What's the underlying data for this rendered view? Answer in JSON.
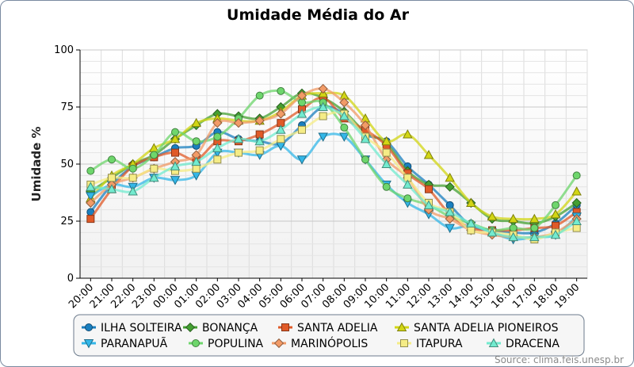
{
  "chart_data": {
    "type": "line",
    "title": "Umidade Média do Ar",
    "ylabel": "Umidade %",
    "xlabel": "",
    "ylim": [
      0,
      100
    ],
    "yticks": [
      0,
      25,
      50,
      75,
      100
    ],
    "grid": true,
    "legend_position": "bottom",
    "categories": [
      "20:00",
      "21:00",
      "22:00",
      "23:00",
      "00:00",
      "01:00",
      "02:00",
      "03:00",
      "04:00",
      "05:00",
      "06:00",
      "07:00",
      "08:00",
      "09:00",
      "10:00",
      "11:00",
      "12:00",
      "13:00",
      "14:00",
      "15:00",
      "16:00",
      "17:00",
      "18:00",
      "19:00"
    ],
    "source": "Source: clima.feis.unesp.br",
    "series": [
      {
        "name": "ILHA SOLTEIRA",
        "color": "#1a7fbf",
        "marker": "circle",
        "values": [
          29,
          41,
          49,
          53,
          57,
          58,
          64,
          61,
          60,
          59,
          67,
          75,
          72,
          63,
          60,
          49,
          41,
          32,
          23,
          21,
          20,
          20,
          24,
          32
        ]
      },
      {
        "name": "BONANÇA",
        "color": "#44a032",
        "marker": "diamond",
        "values": [
          38,
          44,
          50,
          54,
          61,
          67,
          72,
          71,
          70,
          75,
          81,
          79,
          73,
          64,
          59,
          47,
          41,
          40,
          33,
          26,
          25,
          24,
          27,
          33
        ]
      },
      {
        "name": "SANTA ADELIA",
        "color": "#e05a28",
        "marker": "square",
        "values": [
          26,
          39,
          49,
          53,
          55,
          52,
          60,
          60,
          63,
          68,
          74,
          79,
          70,
          65,
          58,
          46,
          39,
          28,
          22,
          21,
          21,
          22,
          23,
          29
        ]
      },
      {
        "name": "SANTA ADELIA PIONEIROS",
        "color": "#d2d614",
        "marker": "triangle",
        "values": [
          35,
          45,
          50,
          57,
          61,
          68,
          70,
          69,
          69,
          73,
          80,
          81,
          80,
          70,
          60,
          63,
          54,
          44,
          33,
          27,
          26,
          26,
          28,
          38
        ]
      },
      {
        "name": "PARANAPUÃ",
        "color": "#33b7e8",
        "marker": "triangle-down",
        "values": [
          36,
          41,
          40,
          44,
          43,
          45,
          55,
          55,
          54,
          58,
          52,
          62,
          62,
          52,
          41,
          33,
          28,
          22,
          23,
          20,
          17,
          18,
          19,
          27
        ]
      },
      {
        "name": "POPULINA",
        "color": "#6ed66c",
        "marker": "circle",
        "values": [
          47,
          52,
          48,
          54,
          64,
          60,
          62,
          70,
          80,
          82,
          77,
          77,
          66,
          52,
          40,
          35,
          32,
          27,
          24,
          21,
          22,
          22,
          32,
          45
        ]
      },
      {
        "name": "MARINÓPOLIS",
        "color": "#f29b67",
        "marker": "diamond",
        "values": [
          33,
          41,
          44,
          48,
          51,
          54,
          68,
          68,
          69,
          72,
          80,
          83,
          77,
          67,
          52,
          44,
          30,
          26,
          21,
          19,
          18,
          18,
          20,
          26
        ]
      },
      {
        "name": "ITAPURA",
        "color": "#f5ec86",
        "marker": "square",
        "values": [
          41,
          44,
          44,
          48,
          47,
          48,
          52,
          55,
          56,
          61,
          65,
          71,
          72,
          62,
          55,
          44,
          33,
          29,
          21,
          20,
          19,
          17,
          20,
          22
        ]
      },
      {
        "name": "DRACENA",
        "color": "#72ebcf",
        "marker": "triangle",
        "values": [
          40,
          39,
          38,
          44,
          49,
          51,
          57,
          61,
          60,
          65,
          72,
          75,
          71,
          61,
          50,
          41,
          32,
          29,
          24,
          20,
          18,
          18,
          19,
          25
        ]
      }
    ]
  }
}
